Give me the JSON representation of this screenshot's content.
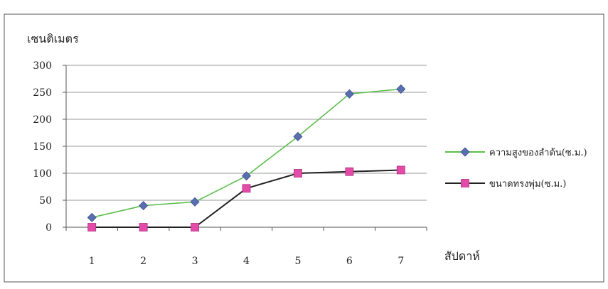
{
  "chart_data": {
    "type": "line",
    "ylabel": "เซนติเมตร",
    "xlabel": "สัปดาห์",
    "categories": [
      "1",
      "2",
      "3",
      "4",
      "5",
      "6",
      "7"
    ],
    "ylim": [
      0,
      300
    ],
    "yticks": [
      0,
      50,
      100,
      150,
      200,
      250,
      300
    ],
    "grid": true,
    "legend_position": "right",
    "series": [
      {
        "name": "ความสูงของลำต้น(ซ.ม.)",
        "values": [
          18,
          40,
          47,
          95,
          168,
          247,
          256
        ],
        "line_color": "#5cbf4c",
        "marker_color": "#5a6fb0",
        "marker": "diamond"
      },
      {
        "name": "ขนาดทรงพุ่ม(ซ.ม.)",
        "values": [
          0,
          0,
          0,
          72,
          100,
          103,
          106
        ],
        "line_color": "#222222",
        "marker_color": "#e44ba8",
        "marker": "square"
      }
    ]
  }
}
